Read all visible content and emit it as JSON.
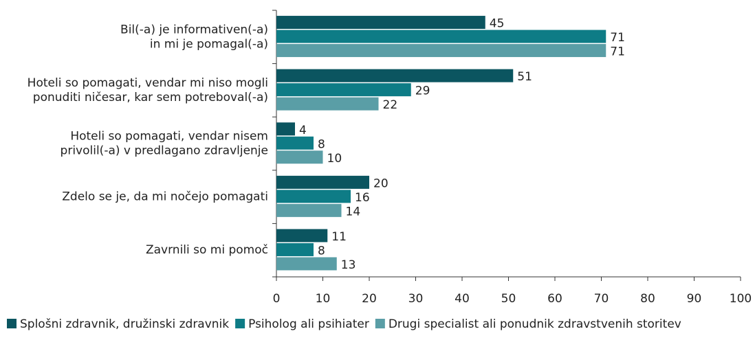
{
  "chart_data": {
    "type": "bar",
    "orientation": "horizontal",
    "categories": [
      [
        "Bil(-a) je informativen(-a)",
        "in mi je pomagal(-a)"
      ],
      [
        "Hoteli so pomagati, vendar mi niso mogli",
        "ponuditi ničesar, kar sem potreboval(-a)"
      ],
      [
        "Hoteli so pomagati, vendar nisem",
        "privolil(-a) v predlagano zdravljenje"
      ],
      [
        "Zdelo se je, da mi nočejo pomagati"
      ],
      [
        "Zavrnili so mi pomoč"
      ]
    ],
    "series": [
      {
        "name": "Splošni zdravnik, družinski zdravnik",
        "color": "#0b5560",
        "values": [
          45,
          51,
          4,
          20,
          11
        ]
      },
      {
        "name": "Psiholog ali psihiater",
        "color": "#0e7c86",
        "values": [
          71,
          29,
          8,
          16,
          8
        ]
      },
      {
        "name": "Drugi specialist ali ponudnik zdravstvenih storitev",
        "color": "#5a9ea6",
        "values": [
          71,
          22,
          10,
          14,
          13
        ]
      }
    ],
    "xlim": [
      0,
      100
    ],
    "xticks": [
      0,
      10,
      20,
      30,
      40,
      50,
      60,
      70,
      80,
      90,
      100
    ],
    "legend": "bottom"
  }
}
